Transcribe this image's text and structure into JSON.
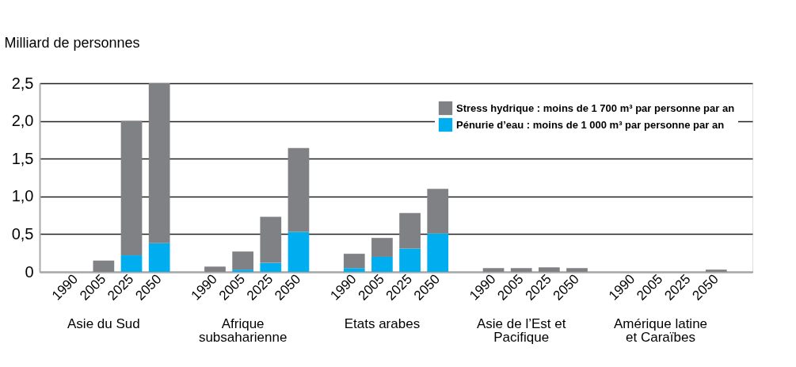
{
  "chart_data": {
    "type": "bar",
    "stacked": true,
    "ylabel": "Milliard de personnes",
    "categories": [
      "1990",
      "2005",
      "2025",
      "2050",
      null,
      "1990",
      "2005",
      "2025",
      "2050",
      null,
      "1990",
      "2005",
      "2025",
      "2050",
      null,
      "1990",
      "2005",
      "2025",
      "2050",
      null,
      "1990",
      "2005",
      "2025",
      "2050"
    ],
    "annotations": [
      "Asie du Sud",
      "Afrique subsaharienne",
      "Etats arabes",
      "Asie de l’Est et Pacifique",
      "Amérique latine et Caraïbes"
    ],
    "series": [
      {
        "name": "Pénurie d’eau : moins de 1 000 m³ par personne par an",
        "color": "#00aeef",
        "values": [
          0,
          0,
          0.22,
          0.38,
          null,
          0,
          0.03,
          0.12,
          0.53,
          null,
          0.05,
          0.2,
          0.31,
          0.51,
          null,
          0,
          0,
          0,
          0,
          null,
          0,
          0,
          0,
          0
        ]
      },
      {
        "name": "Stress hydrique : moins de 1 700 m³ par personne par an",
        "color": "#808184",
        "values": [
          0,
          0.15,
          1.78,
          2.12,
          null,
          0.07,
          0.24,
          0.61,
          1.11,
          null,
          0.19,
          0.25,
          0.47,
          0.59,
          null,
          0.05,
          0.05,
          0.06,
          0.05,
          null,
          0,
          0,
          0,
          0.03
        ]
      }
    ],
    "ylim": [
      0,
      2.5
    ],
    "yticks": [
      0,
      {
        "value": 0.5,
        "label": "0,5"
      },
      {
        "value": 1,
        "label": "1,0"
      },
      {
        "value": 1.5,
        "label": "1,5"
      },
      {
        "value": 2,
        "label": "2,0"
      },
      {
        "value": 2.5,
        "label": "2,5"
      }
    ],
    "grid": "y",
    "legend": "top right"
  }
}
